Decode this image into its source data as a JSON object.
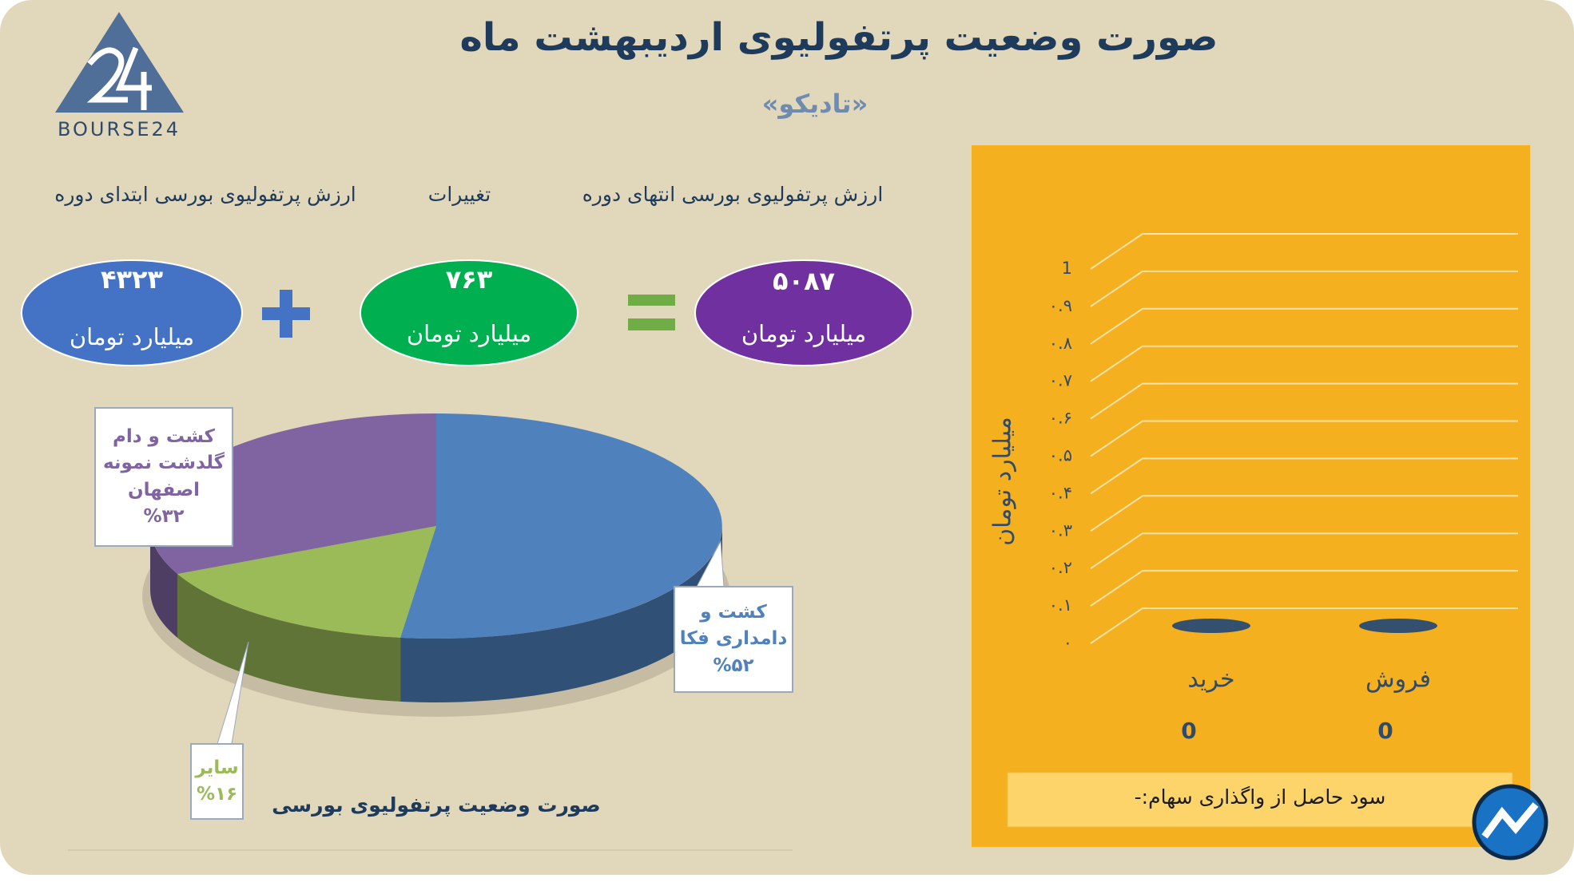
{
  "header": {
    "title": "صورت وضعیت پرتفولیوی اردیبهشت ماه",
    "subtitle": "«تادیکو»",
    "logo": "BOURSE24"
  },
  "equation": {
    "items": [
      {
        "caption": "ارزش پرتفولیوی بورسی انتهای دوره",
        "value": "۵۰۸۷",
        "unit": "میلیارد تومان"
      },
      {
        "caption": "تغییرات",
        "value": "۷۶۳",
        "unit": "میلیارد تومان"
      },
      {
        "caption": "ارزش پرتفولیوی بورسی ابتدای دوره",
        "value": "۴۳۲۳",
        "unit": "میلیارد تومان"
      }
    ]
  },
  "note": "سود حاصل از واگذاری سهام:-",
  "chart_data": [
    {
      "type": "pie",
      "title": "صورت وضعیت پرتفولیوی بورسی",
      "categories": [
        "کشت و دامداری فکا",
        "سایر",
        "کشت و دام گلدشت نمونه اصفهان"
      ],
      "values": [
        52,
        16,
        32
      ],
      "value_labels": [
        "%۵۲",
        "%۱۶",
        "%۳۲"
      ],
      "colors": [
        "#4f81bd",
        "#9bbb59",
        "#8064a2"
      ]
    },
    {
      "type": "bar",
      "ylabel": "میلیارد تومان",
      "categories": [
        "خرید",
        "فروش"
      ],
      "values": [
        0,
        0
      ],
      "color": "#34506f",
      "ylim": [
        0,
        1
      ],
      "grid": true,
      "yticks": [
        {
          "value": 0,
          "label": "۰"
        },
        {
          "value": 0.1,
          "label": "۰.۱"
        },
        {
          "value": 0.2,
          "label": "۰.۲"
        },
        {
          "value": 0.3,
          "label": "۰.۳"
        },
        {
          "value": 0.4,
          "label": "۰.۴"
        },
        {
          "value": 0.5,
          "label": "۰.۵"
        },
        {
          "value": 0.6,
          "label": "۰.۶"
        },
        {
          "value": 0.7,
          "label": "۰.۷"
        },
        {
          "value": 0.8,
          "label": "۰.۸"
        },
        {
          "value": 0.9,
          "label": "۰.۹"
        },
        1
      ]
    }
  ]
}
